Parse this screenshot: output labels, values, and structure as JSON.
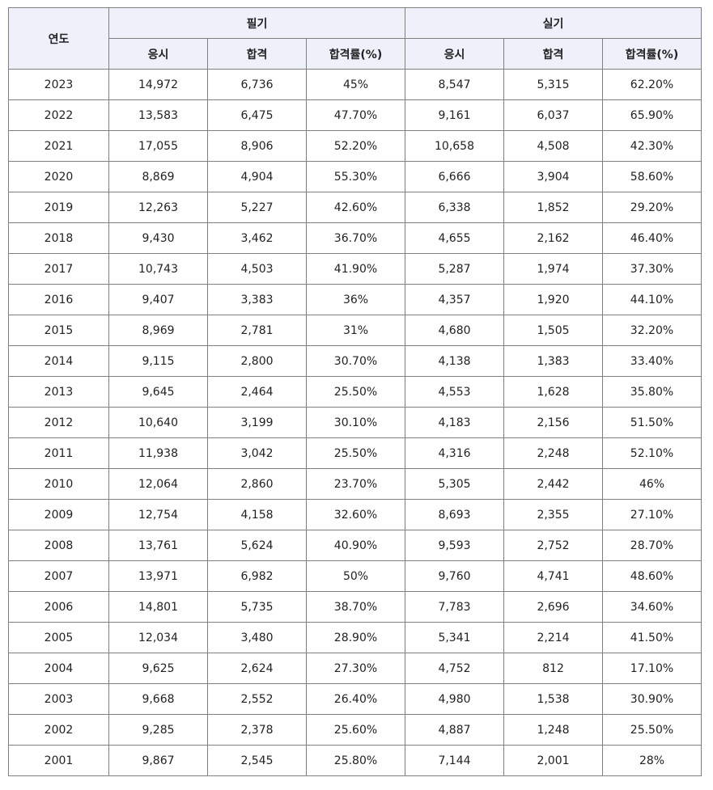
{
  "table": {
    "year_header": "연도",
    "groups": [
      "필기",
      "실기"
    ],
    "subheaders": [
      "응시",
      "합격",
      "합격률(%)",
      "응시",
      "합격",
      "합격률(%)"
    ],
    "rows": [
      [
        "2023",
        "14,972",
        "6,736",
        "45%",
        "8,547",
        "5,315",
        "62.20%"
      ],
      [
        "2022",
        "13,583",
        "6,475",
        "47.70%",
        "9,161",
        "6,037",
        "65.90%"
      ],
      [
        "2021",
        "17,055",
        "8,906",
        "52.20%",
        "10,658",
        "4,508",
        "42.30%"
      ],
      [
        "2020",
        "8,869",
        "4,904",
        "55.30%",
        "6,666",
        "3,904",
        "58.60%"
      ],
      [
        "2019",
        "12,263",
        "5,227",
        "42.60%",
        "6,338",
        "1,852",
        "29.20%"
      ],
      [
        "2018",
        "9,430",
        "3,462",
        "36.70%",
        "4,655",
        "2,162",
        "46.40%"
      ],
      [
        "2017",
        "10,743",
        "4,503",
        "41.90%",
        "5,287",
        "1,974",
        "37.30%"
      ],
      [
        "2016",
        "9,407",
        "3,383",
        "36%",
        "4,357",
        "1,920",
        "44.10%"
      ],
      [
        "2015",
        "8,969",
        "2,781",
        "31%",
        "4,680",
        "1,505",
        "32.20%"
      ],
      [
        "2014",
        "9,115",
        "2,800",
        "30.70%",
        "4,138",
        "1,383",
        "33.40%"
      ],
      [
        "2013",
        "9,645",
        "2,464",
        "25.50%",
        "4,553",
        "1,628",
        "35.80%"
      ],
      [
        "2012",
        "10,640",
        "3,199",
        "30.10%",
        "4,183",
        "2,156",
        "51.50%"
      ],
      [
        "2011",
        "11,938",
        "3,042",
        "25.50%",
        "4,316",
        "2,248",
        "52.10%"
      ],
      [
        "2010",
        "12,064",
        "2,860",
        "23.70%",
        "5,305",
        "2,442",
        "46%"
      ],
      [
        "2009",
        "12,754",
        "4,158",
        "32.60%",
        "8,693",
        "2,355",
        "27.10%"
      ],
      [
        "2008",
        "13,761",
        "5,624",
        "40.90%",
        "9,593",
        "2,752",
        "28.70%"
      ],
      [
        "2007",
        "13,971",
        "6,982",
        "50%",
        "9,760",
        "4,741",
        "48.60%"
      ],
      [
        "2006",
        "14,801",
        "5,735",
        "38.70%",
        "7,783",
        "2,696",
        "34.60%"
      ],
      [
        "2005",
        "12,034",
        "3,480",
        "28.90%",
        "5,341",
        "2,214",
        "41.50%"
      ],
      [
        "2004",
        "9,625",
        "2,624",
        "27.30%",
        "4,752",
        "812",
        "17.10%"
      ],
      [
        "2003",
        "9,668",
        "2,552",
        "26.40%",
        "4,980",
        "1,538",
        "30.90%"
      ],
      [
        "2002",
        "9,285",
        "2,378",
        "25.60%",
        "4,887",
        "1,248",
        "25.50%"
      ],
      [
        "2001",
        "9,867",
        "2,545",
        "25.80%",
        "7,144",
        "2,001",
        "28%"
      ]
    ]
  }
}
